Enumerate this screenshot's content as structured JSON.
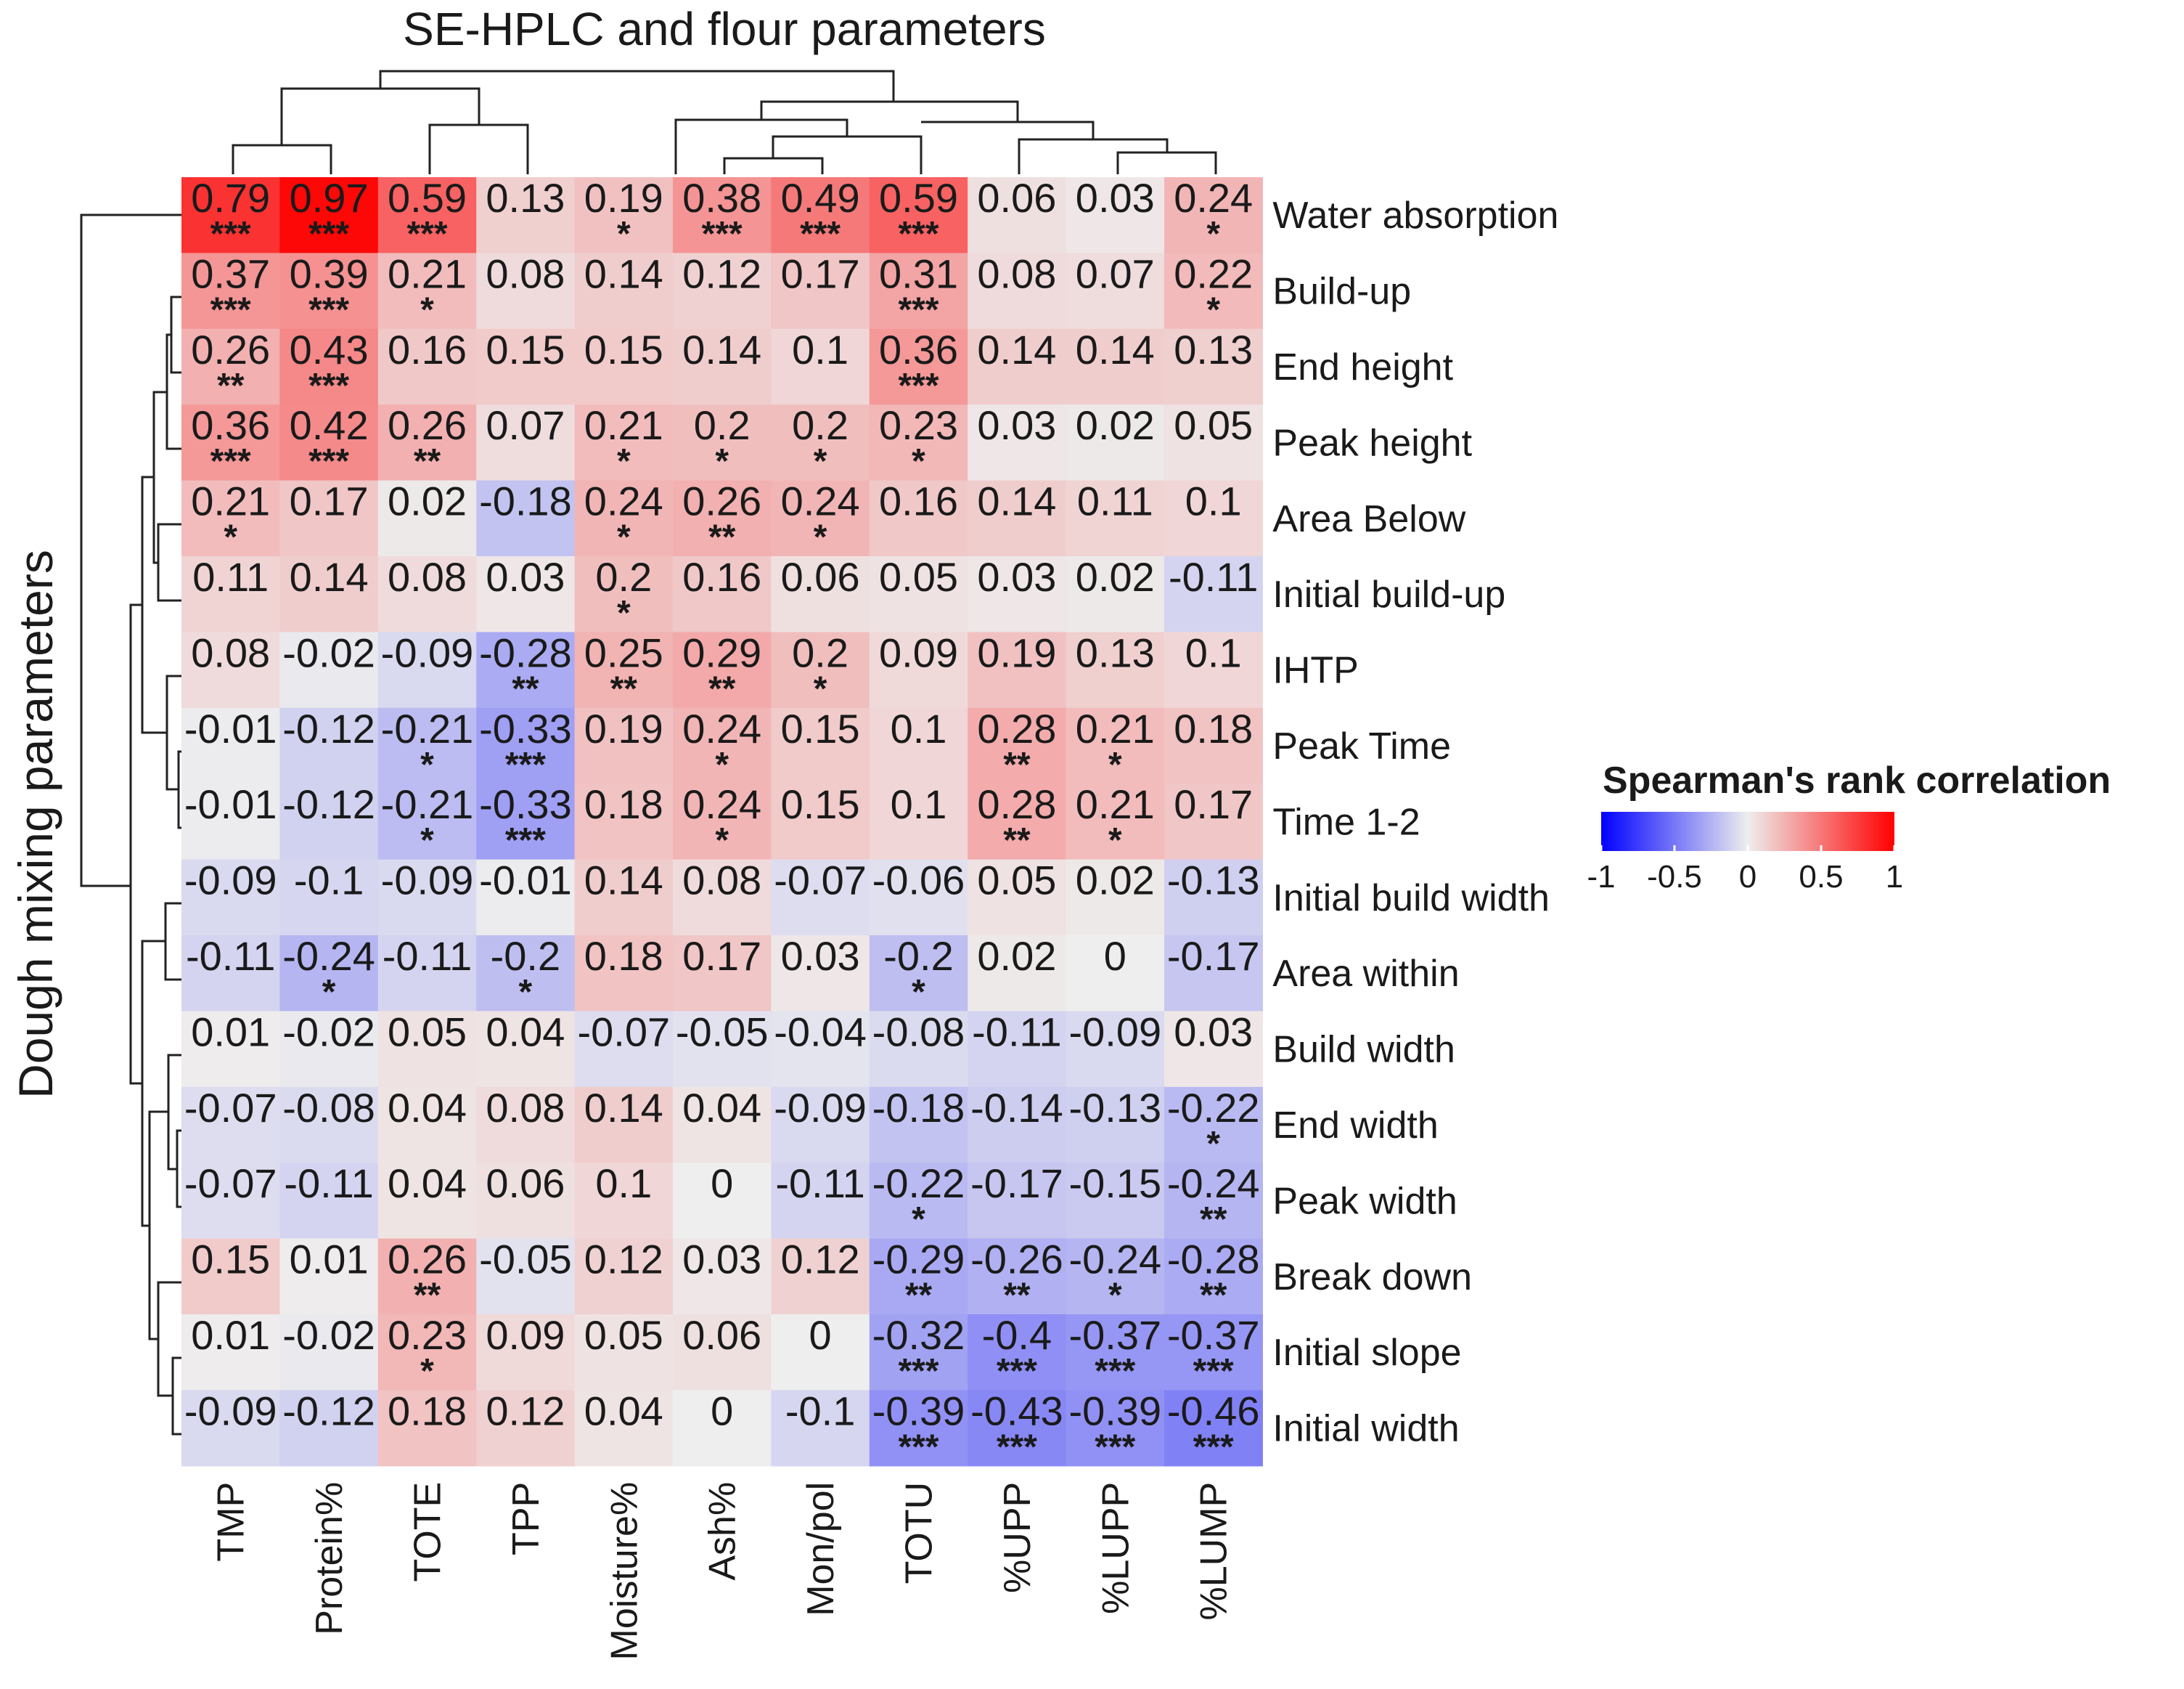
{
  "chart_data": {
    "type": "heatmap",
    "title": "SE-HPLC and flour parameters",
    "xlabel": "SE-HPLC and flour parameters",
    "ylabel": "Dough mixing parameters",
    "columns": [
      "TMP",
      "Protein%",
      "TOTE",
      "TPP",
      "Moisture%",
      "Ash%",
      "Mon/pol",
      "TOTU",
      "%UPP",
      "%LUPP",
      "%LUMP"
    ],
    "rows": [
      "Water absorption",
      "Build-up",
      "End height",
      "Peak height",
      "Area Below",
      "Initial build-up",
      "IHTP",
      "Peak Time",
      "Time 1-2",
      "Initial build width",
      "Area within",
      "Build width",
      "End width",
      "Peak width",
      "Break down",
      "Initial slope",
      "Initial width"
    ],
    "values": [
      [
        "0.79",
        "0.97",
        "0.59",
        "0.13",
        "0.19",
        "0.38",
        "0.49",
        "0.59",
        "0.06",
        "0.03",
        "0.24"
      ],
      [
        "0.37",
        "0.39",
        "0.21",
        "0.08",
        "0.14",
        "0.12",
        "0.17",
        "0.31",
        "0.08",
        "0.07",
        "0.22"
      ],
      [
        "0.26",
        "0.43",
        "0.16",
        "0.15",
        "0.15",
        "0.14",
        "0.1",
        "0.36",
        "0.14",
        "0.14",
        "0.13"
      ],
      [
        "0.36",
        "0.42",
        "0.26",
        "0.07",
        "0.21",
        "0.2",
        "0.2",
        "0.23",
        "0.03",
        "0.02",
        "0.05"
      ],
      [
        "0.21",
        "0.17",
        "0.02",
        "-0.18",
        "0.24",
        "0.26",
        "0.24",
        "0.16",
        "0.14",
        "0.11",
        "0.1"
      ],
      [
        "0.11",
        "0.14",
        "0.08",
        "0.03",
        "0.2",
        "0.16",
        "0.06",
        "0.05",
        "0.03",
        "0.02",
        "-0.11"
      ],
      [
        "0.08",
        "-0.02",
        "-0.09",
        "-0.28",
        "0.25",
        "0.29",
        "0.2",
        "0.09",
        "0.19",
        "0.13",
        "0.1"
      ],
      [
        "-0.01",
        "-0.12",
        "-0.21",
        "-0.33",
        "0.19",
        "0.24",
        "0.15",
        "0.1",
        "0.28",
        "0.21",
        "0.18"
      ],
      [
        "-0.01",
        "-0.12",
        "-0.21",
        "-0.33",
        "0.18",
        "0.24",
        "0.15",
        "0.1",
        "0.28",
        "0.21",
        "0.17"
      ],
      [
        "-0.09",
        "-0.1",
        "-0.09",
        "-0.01",
        "0.14",
        "0.08",
        "-0.07",
        "-0.06",
        "0.05",
        "0.02",
        "-0.13"
      ],
      [
        "-0.11",
        "-0.24",
        "-0.11",
        "-0.2",
        "0.18",
        "0.17",
        "0.03",
        "-0.2",
        "0.02",
        "0",
        "-0.17"
      ],
      [
        "0.01",
        "-0.02",
        "0.05",
        "0.04",
        "-0.07",
        "-0.05",
        "-0.04",
        "-0.08",
        "-0.11",
        "-0.09",
        "0.03"
      ],
      [
        "-0.07",
        "-0.08",
        "0.04",
        "0.08",
        "0.14",
        "0.04",
        "-0.09",
        "-0.18",
        "-0.14",
        "-0.13",
        "-0.22"
      ],
      [
        "-0.07",
        "-0.11",
        "0.04",
        "0.06",
        "0.1",
        "0",
        "-0.11",
        "-0.22",
        "-0.17",
        "-0.15",
        "-0.24"
      ],
      [
        "0.15",
        "0.01",
        "0.26",
        "-0.05",
        "0.12",
        "0.03",
        "0.12",
        "-0.29",
        "-0.26",
        "-0.24",
        "-0.28"
      ],
      [
        "0.01",
        "-0.02",
        "0.23",
        "0.09",
        "0.05",
        "0.06",
        "0",
        "-0.32",
        "-0.4",
        "-0.37",
        "-0.37"
      ],
      [
        "-0.09",
        "-0.12",
        "0.18",
        "0.12",
        "0.04",
        "0",
        "-0.1",
        "-0.39",
        "-0.43",
        "-0.39",
        "-0.46"
      ]
    ],
    "significance": [
      [
        "***",
        "***",
        "***",
        "",
        "*",
        "***",
        "***",
        "***",
        "",
        "",
        "*"
      ],
      [
        "***",
        "***",
        "*",
        "",
        "",
        "",
        "",
        "***",
        "",
        "",
        "*"
      ],
      [
        "**",
        "***",
        "",
        "",
        "",
        "",
        "",
        "***",
        "",
        "",
        ""
      ],
      [
        "***",
        "***",
        "**",
        "",
        "*",
        "*",
        "*",
        "*",
        "",
        "",
        ""
      ],
      [
        "*",
        "",
        "",
        "",
        "*",
        "**",
        "*",
        "",
        "",
        "",
        ""
      ],
      [
        "",
        "",
        "",
        "",
        "*",
        "",
        "",
        "",
        "",
        "",
        ""
      ],
      [
        "",
        "",
        "",
        "**",
        "**",
        "**",
        "*",
        "",
        "",
        "",
        ""
      ],
      [
        "",
        "",
        "*",
        "***",
        "",
        "*",
        "",
        "",
        "**",
        "*",
        ""
      ],
      [
        "",
        "",
        "*",
        "***",
        "",
        "*",
        "",
        "",
        "**",
        "*",
        ""
      ],
      [
        "",
        "",
        "",
        "",
        "",
        "",
        "",
        "",
        "",
        "",
        ""
      ],
      [
        "",
        "*",
        "",
        "*",
        "",
        "",
        "",
        "*",
        "",
        "",
        ""
      ],
      [
        "",
        "",
        "",
        "",
        "",
        "",
        "",
        "",
        "",
        "",
        ""
      ],
      [
        "",
        "",
        "",
        "",
        "",
        "",
        "",
        "",
        "",
        "",
        "*"
      ],
      [
        "",
        "",
        "",
        "",
        "",
        "",
        "",
        "*",
        "",
        "",
        "**"
      ],
      [
        "",
        "",
        "**",
        "",
        "",
        "",
        "",
        "**",
        "**",
        "*",
        "**"
      ],
      [
        "",
        "",
        "*",
        "",
        "",
        "",
        "",
        "***",
        "***",
        "***",
        "***"
      ],
      [
        "",
        "",
        "",
        "",
        "",
        "",
        "",
        "***",
        "***",
        "***",
        "***"
      ]
    ],
    "color_scale": {
      "title": "Spearman's rank correlation",
      "min": -1,
      "max": 1,
      "ticks": [
        "-1",
        "-0.5",
        "0",
        "0.5",
        "1"
      ],
      "low_color": "#0000ff",
      "mid_color": "#eeeeee",
      "high_color": "#ff0000"
    },
    "legend_position": "right"
  }
}
